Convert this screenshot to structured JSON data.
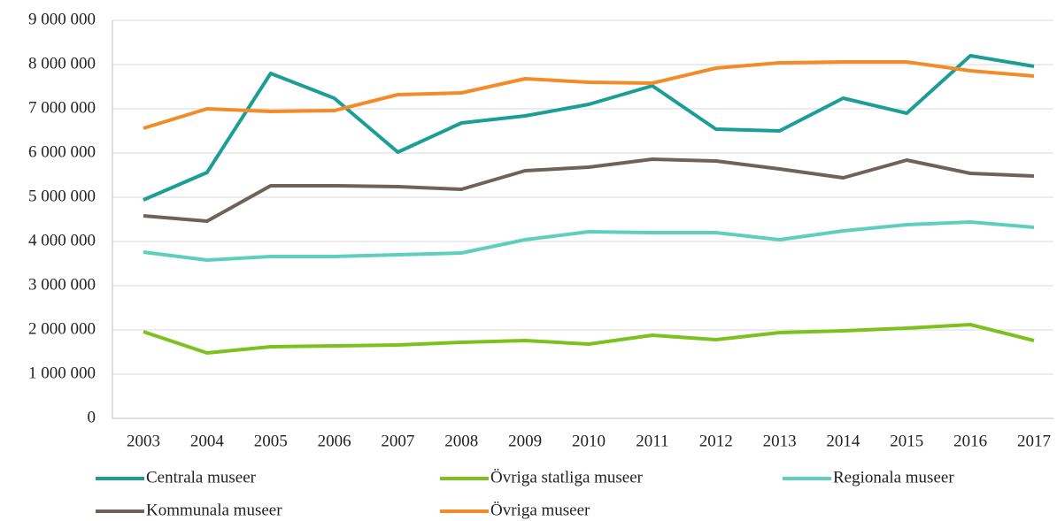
{
  "chart_data": {
    "type": "line",
    "categories": [
      "2003",
      "2004",
      "2005",
      "2006",
      "2007",
      "2008",
      "2009",
      "2010",
      "2011",
      "2012",
      "2013",
      "2014",
      "2015",
      "2016",
      "2017"
    ],
    "series": [
      {
        "name": "Centrala museer",
        "color": "#1a9e96",
        "values": [
          4940000,
          5560000,
          7800000,
          7240000,
          6020000,
          6680000,
          6840000,
          7100000,
          7520000,
          6540000,
          6500000,
          7240000,
          6900000,
          8200000,
          7960000
        ]
      },
      {
        "name": "Övriga statliga museer",
        "color": "#7dc11f",
        "values": [
          1960000,
          1480000,
          1620000,
          1640000,
          1660000,
          1720000,
          1760000,
          1680000,
          1880000,
          1780000,
          1940000,
          1980000,
          2040000,
          2120000,
          1760000
        ]
      },
      {
        "name": "Regionala museer",
        "color": "#5fcfbd",
        "values": [
          3760000,
          3580000,
          3660000,
          3660000,
          3700000,
          3740000,
          4040000,
          4220000,
          4200000,
          4200000,
          4040000,
          4240000,
          4380000,
          4440000,
          4320000
        ]
      },
      {
        "name": "Kommunala museer",
        "color": "#6e6259",
        "values": [
          4580000,
          4460000,
          5260000,
          5260000,
          5240000,
          5180000,
          5600000,
          5680000,
          5860000,
          5820000,
          5640000,
          5440000,
          5840000,
          5540000,
          5480000
        ]
      },
      {
        "name": "Övriga museer",
        "color": "#f28c28",
        "values": [
          6560000,
          7000000,
          6940000,
          6960000,
          7320000,
          7360000,
          7680000,
          7600000,
          7580000,
          7920000,
          8040000,
          8060000,
          8060000,
          7860000,
          7740000
        ]
      }
    ],
    "ylim": [
      0,
      9000000
    ],
    "yticks": [
      0,
      {
        "value": 1000000,
        "label": "1 000 000"
      },
      {
        "value": 2000000,
        "label": "2 000 000"
      },
      {
        "value": 3000000,
        "label": "3 000 000"
      },
      {
        "value": 4000000,
        "label": "4 000 000"
      },
      {
        "value": 5000000,
        "label": "5 000 000"
      },
      {
        "value": 6000000,
        "label": "6 000 000"
      },
      {
        "value": 7000000,
        "label": "7 000 000"
      },
      {
        "value": 8000000,
        "label": "8 000 000"
      },
      {
        "value": 9000000,
        "label": "9 000 000"
      }
    ],
    "grid": true,
    "legend": "bottom"
  }
}
